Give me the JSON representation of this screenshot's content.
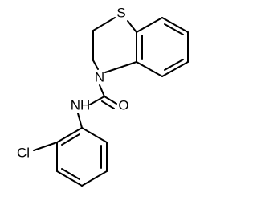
{
  "nodes": [
    {
      "label": "S"
    },
    {
      "label": "N"
    },
    {
      "label": "NH"
    },
    {
      "label": "O"
    },
    {
      "label": "Cl"
    }
  ]
}
